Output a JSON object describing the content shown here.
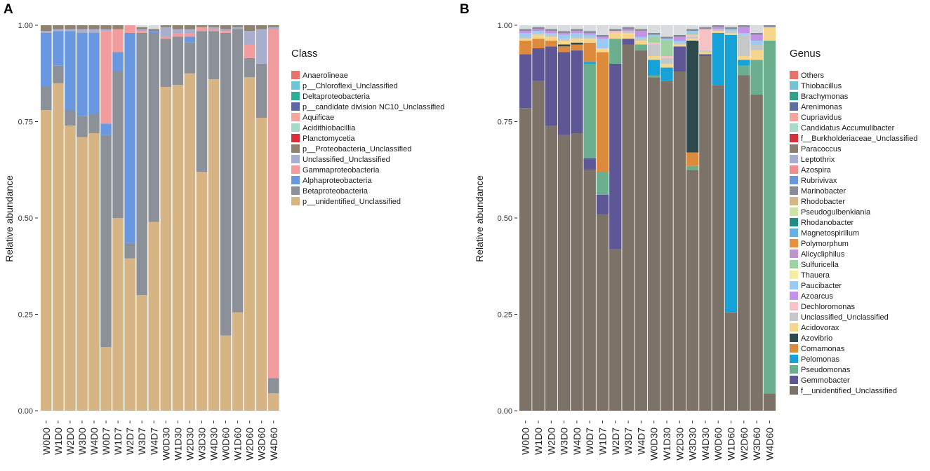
{
  "chart_data": [
    {
      "panel": "A",
      "type": "bar",
      "stacked": true,
      "ylabel": "Relative abundance",
      "ylim": [
        0,
        1
      ],
      "yticks": [
        "0.00",
        "0.25",
        "0.50",
        "0.75",
        "1.00"
      ],
      "categories": [
        "W0D0",
        "W1D0",
        "W2D0",
        "W3D0",
        "W4D0",
        "W0D7",
        "W1D7",
        "W2D7",
        "W3D7",
        "W4D7",
        "W0D30",
        "W1D30",
        "W2D30",
        "W3D30",
        "W4D30",
        "W0D60",
        "W1D60",
        "W2D60",
        "W3D60",
        "W4D60"
      ],
      "legend_title": "Class",
      "legend_labels": [
        "Anaerolineae",
        "p__Chloroflexi_Unclassified",
        "Deltaproteobacteria",
        "p__candidate division NC10_Unclassified",
        "Aquificae",
        "Acidithiobacillia",
        "Planctomycetia",
        "p__Proteobacteria_Unclassified",
        "Unclassified_Unclassified",
        "Gammaproteobacteria",
        "Alphaproteobacteria",
        "Betaproteobacteria",
        "p__unidentified_Unclassified"
      ],
      "legend_colors": [
        "#E8736A",
        "#6CC5D8",
        "#2FAF94",
        "#5C67A8",
        "#F4A59C",
        "#A7D9CB",
        "#D92F3A",
        "#8F8270",
        "#A7AECE",
        "#F29C9E",
        "#6A98E0",
        "#8C9199",
        "#D6B483"
      ],
      "series": [
        {
          "name": "p__unidentified_Unclassified",
          "color": "#D6B483",
          "values": [
            0.78,
            0.85,
            0.74,
            0.71,
            0.72,
            0.165,
            0.5,
            0.395,
            0.3,
            0.49,
            0.84,
            0.845,
            0.875,
            0.62,
            0.86,
            0.195,
            0.255,
            0.865,
            0.76,
            0.045
          ]
        },
        {
          "name": "Betaproteobacteria",
          "color": "#8C9199",
          "values": [
            0.06,
            0.045,
            0.04,
            0.055,
            0.05,
            0.55,
            0.38,
            0.04,
            0.68,
            0.49,
            0.125,
            0.125,
            0.08,
            0.365,
            0.125,
            0.785,
            0.735,
            0.05,
            0.14,
            0.04
          ]
        },
        {
          "name": "Alphaproteobacteria",
          "color": "#6A98E0",
          "values": [
            0.14,
            0.09,
            0.205,
            0.215,
            0.21,
            0.03,
            0.05,
            0.545,
            0.0,
            0.005,
            0.0,
            0.0,
            0.015,
            0.0,
            0.0,
            0.0,
            0.0,
            0.0,
            0.0,
            0.0
          ]
        },
        {
          "name": "Gammaproteobacteria",
          "color": "#F29C9E",
          "values": [
            0.0,
            0.0,
            0.0,
            0.0,
            0.0,
            0.24,
            0.06,
            0.02,
            0.005,
            0.0,
            0.005,
            0.01,
            0.01,
            0.01,
            0.005,
            0.005,
            0.0,
            0.035,
            0.0,
            0.905
          ]
        },
        {
          "name": "Unclassified_Unclassified",
          "color": "#A7AECE",
          "values": [
            0.005,
            0.005,
            0.005,
            0.01,
            0.01,
            0.005,
            0.0,
            0.0,
            0.005,
            0.0,
            0.025,
            0.01,
            0.01,
            0.0,
            0.005,
            0.005,
            0.005,
            0.035,
            0.09,
            0.005
          ]
        },
        {
          "name": "p__Proteobacteria_Unclassified",
          "color": "#8F8270",
          "values": [
            0.015,
            0.01,
            0.01,
            0.01,
            0.01,
            0.01,
            0.01,
            0.0,
            0.005,
            0.005,
            0.005,
            0.01,
            0.01,
            0.005,
            0.005,
            0.01,
            0.005,
            0.015,
            0.01,
            0.005
          ]
        }
      ]
    },
    {
      "panel": "B",
      "type": "bar",
      "stacked": true,
      "ylabel": "Relative abundance",
      "ylim": [
        0,
        1
      ],
      "yticks": [
        "0.00",
        "0.25",
        "0.50",
        "0.75",
        "1.00"
      ],
      "categories": [
        "W0D0",
        "W1D0",
        "W2D0",
        "W3D0",
        "W4D0",
        "W0D7",
        "W1D7",
        "W2D7",
        "W3D7",
        "W4D7",
        "W0D30",
        "W1D30",
        "W2D30",
        "W3D30",
        "W4D30",
        "W0D60",
        "W1D60",
        "W2D60",
        "W3D60",
        "W4D60"
      ],
      "legend_title": "Genus",
      "legend_labels": [
        "Others",
        "Thiobacillus",
        "Brachymonas",
        "Arenimonas",
        "Cupriavidus",
        "Candidatus Accumulibacter",
        "f__Burkholderiaceae_Unclassified",
        "Paracoccus",
        "Leptothrix",
        "Azospira",
        "Rubrivivax",
        "Marinobacter",
        "Rhodobacter",
        "Pseudogulbenkiania",
        "Rhodanobacter",
        "Magnetospirillum",
        "Polymorphum",
        "Alicycliphilus",
        "Sulfuricella",
        "Thauera",
        "Paucibacter",
        "Azoarcus",
        "Dechloromonas",
        "Unclassified_Unclassified",
        "Acidovorax",
        "Azovibrio",
        "Comamonas",
        "Pelomonas",
        "Pseudomonas",
        "Gemmobacter",
        "f__unidentified_Unclassified"
      ],
      "legend_colors": [
        "#E8736A",
        "#74C3D5",
        "#2FA48A",
        "#5C6FA3",
        "#F4A59C",
        "#A9DACC",
        "#D92F3A",
        "#8B7D73",
        "#A5AED0",
        "#EF8D92",
        "#6A98E0",
        "#878C96",
        "#D7B689",
        "#CFE3A8",
        "#1F8F86",
        "#61B3E6",
        "#E8913A",
        "#BC95CC",
        "#9ED3A1",
        "#F3EE9E",
        "#9BCBF3",
        "#C493E8",
        "#F6C2C5",
        "#C5C7C9",
        "#F7D58A",
        "#2F4A4E",
        "#DC8A3C",
        "#14A2D8",
        "#6BAF8E",
        "#5E5796",
        "#7C7268"
      ],
      "series": [
        {
          "name": "f__unidentified_Unclassified",
          "color": "#7C7268",
          "values": [
            0.785,
            0.855,
            0.74,
            0.715,
            0.72,
            0.625,
            0.51,
            0.42,
            0.95,
            0.935,
            0.865,
            0.855,
            0.88,
            0.625,
            0.92,
            0.845,
            0.255,
            0.87,
            0.82,
            0.045
          ]
        },
        {
          "name": "Gemmobacter",
          "color": "#5E5796",
          "values": [
            0.14,
            0.085,
            0.205,
            0.215,
            0.215,
            0.03,
            0.05,
            0.48,
            0.015,
            0.0,
            0.0,
            0.0,
            0.065,
            0.0,
            0.005,
            0.0,
            0.0,
            0.0,
            0.0,
            0.0
          ]
        },
        {
          "name": "Pseudomonas",
          "color": "#6BAF8E",
          "values": [
            0.0,
            0.0,
            0.0,
            0.0,
            0.0,
            0.245,
            0.06,
            0.065,
            0.0,
            0.015,
            0.005,
            0.0,
            0.0,
            0.01,
            0.0,
            0.0,
            0.0,
            0.025,
            0.09,
            0.915
          ]
        },
        {
          "name": "Pelomonas",
          "color": "#14A2D8",
          "values": [
            0.0,
            0.0,
            0.0,
            0.0,
            0.0,
            0.005,
            0.0,
            0.0,
            0.0,
            0.0,
            0.04,
            0.035,
            0.0,
            0.0,
            0.0,
            0.135,
            0.72,
            0.015,
            0.0,
            0.0
          ]
        },
        {
          "name": "Comamonas",
          "color": "#DC8A3C",
          "values": [
            0.035,
            0.025,
            0.015,
            0.015,
            0.015,
            0.05,
            0.31,
            0.0,
            0.0,
            0.0,
            0.0,
            0.0,
            0.0,
            0.035,
            0.0,
            0.0,
            0.0,
            0.0,
            0.0,
            0.0
          ]
        },
        {
          "name": "Azovibrio",
          "color": "#2F4A4E",
          "values": [
            0.0,
            0.0,
            0.0,
            0.005,
            0.005,
            0.0,
            0.0,
            0.0,
            0.0,
            0.0,
            0.0,
            0.0,
            0.0,
            0.29,
            0.0,
            0.0,
            0.0,
            0.0,
            0.0,
            0.0
          ]
        },
        {
          "name": "Acidovorax",
          "color": "#F7D58A",
          "values": [
            0.005,
            0.01,
            0.01,
            0.01,
            0.01,
            0.01,
            0.01,
            0.015,
            0.015,
            0.01,
            0.01,
            0.01,
            0.005,
            0.005,
            0.005,
            0.005,
            0.005,
            0.01,
            0.025,
            0.035
          ]
        },
        {
          "name": "Unclassified_Unclassified",
          "color": "#C5C7C9",
          "values": [
            0.005,
            0.005,
            0.005,
            0.005,
            0.005,
            0.005,
            0.0,
            0.0,
            0.005,
            0.005,
            0.03,
            0.015,
            0.005,
            0.005,
            0.005,
            0.005,
            0.005,
            0.055,
            0.015,
            0.0
          ]
        },
        {
          "name": "Dechloromonas",
          "color": "#F6C2C5",
          "values": [
            0.0,
            0.0,
            0.0,
            0.0,
            0.0,
            0.0,
            0.0,
            0.005,
            0.0,
            0.0,
            0.005,
            0.005,
            0.0,
            0.005,
            0.055,
            0.0,
            0.0,
            0.0,
            0.0,
            0.0
          ]
        },
        {
          "name": "Sulfuricella",
          "color": "#9ED3A1",
          "values": [
            0.0,
            0.0,
            0.0,
            0.0,
            0.0,
            0.0,
            0.0,
            0.0,
            0.0,
            0.0,
            0.015,
            0.04,
            0.0,
            0.005,
            0.0,
            0.0,
            0.0,
            0.0,
            0.0,
            0.0
          ]
        },
        {
          "name": "Paucibacter",
          "color": "#9BCBF3",
          "values": [
            0.01,
            0.005,
            0.005,
            0.01,
            0.01,
            0.005,
            0.025,
            0.0,
            0.0,
            0.005,
            0.005,
            0.005,
            0.005,
            0.005,
            0.0,
            0.0,
            0.005,
            0.005,
            0.01,
            0.0
          ]
        },
        {
          "name": "Azoarcus",
          "color": "#C493E8",
          "values": [
            0.005,
            0.005,
            0.005,
            0.005,
            0.005,
            0.005,
            0.005,
            0.0,
            0.005,
            0.015,
            0.0,
            0.0,
            0.01,
            0.0,
            0.0,
            0.005,
            0.0,
            0.015,
            0.015,
            0.0
          ]
        },
        {
          "name": "Marinobacter",
          "color": "#878C96",
          "values": [
            0.005,
            0.005,
            0.005,
            0.005,
            0.005,
            0.005,
            0.005,
            0.005,
            0.005,
            0.005,
            0.005,
            0.005,
            0.005,
            0.005,
            0.005,
            0.005,
            0.005,
            0.005,
            0.005,
            0.005
          ]
        }
      ]
    }
  ]
}
